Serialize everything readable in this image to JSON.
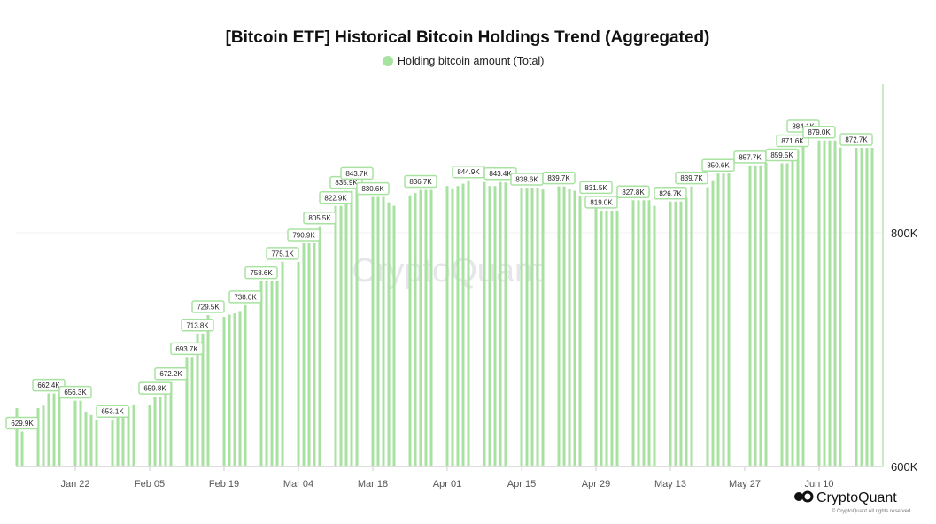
{
  "chart_data": {
    "type": "bar",
    "title": "[Bitcoin ETF] Historical Bitcoin Holdings Trend (Aggregated)",
    "legend": {
      "position": "top",
      "entries": [
        {
          "name": "Holding bitcoin amount (Total)",
          "color": "#a8e2a0"
        }
      ]
    },
    "series": [
      {
        "name": "Holding bitcoin amount (Total)",
        "color": "#a8e2a0",
        "weeks": [
          {
            "start": "2024-01-11",
            "values": [
              650,
              629.9
            ]
          },
          {
            "start": "2024-01-15",
            "values": [
              650,
              652,
              662.4,
              662.4,
              662.4
            ]
          },
          {
            "start": "2024-01-22",
            "values": [
              656.3,
              656.3,
              647,
              644,
              640
            ]
          },
          {
            "start": "2024-01-29",
            "values": [
              640,
              651,
              651,
              651,
              653.1
            ]
          },
          {
            "start": "2024-02-05",
            "values": [
              653,
              659.8,
              659.8,
              668,
              672.2
            ]
          },
          {
            "start": "2024-02-12",
            "values": [
              693.7,
              693.7,
              713.8,
              713.8,
              729.5
            ]
          },
          {
            "start": "2024-02-19",
            "values": [
              728,
              730,
              731,
              733,
              738.0
            ]
          },
          {
            "start": "2024-02-26",
            "values": [
              758.6,
              758.6,
              758.6,
              758.6,
              775.1
            ]
          },
          {
            "start": "2024-03-04",
            "values": [
              775,
              790.9,
              790.9,
              790.9,
              805.5
            ]
          },
          {
            "start": "2024-03-11",
            "values": [
              822.9,
              822.9,
              835.9,
              835.9,
              843.7
            ]
          },
          {
            "start": "2024-03-18",
            "values": [
              830.6,
              830.6,
              830.6,
              826,
              823
            ]
          },
          {
            "start": "2024-03-25",
            "values": [
              832,
              834,
              836.7,
              836.7,
              836.7
            ]
          },
          {
            "start": "2024-04-01",
            "values": [
              840,
              838,
              840,
              842,
              844.9
            ]
          },
          {
            "start": "2024-04-08",
            "values": [
              843.4,
              840,
              840,
              843.4,
              843
            ]
          },
          {
            "start": "2024-04-15",
            "values": [
              838.6,
              838.6,
              838.6,
              838.6,
              837
            ]
          },
          {
            "start": "2024-04-22",
            "values": [
              839.7,
              839.7,
              838,
              836,
              831
            ]
          },
          {
            "start": "2024-04-29",
            "values": [
              831.5,
              819.0,
              819.0,
              819.0,
              819.0
            ]
          },
          {
            "start": "2024-05-06",
            "values": [
              827.8,
              827.8,
              827.8,
              827.8,
              823
            ]
          },
          {
            "start": "2024-05-13",
            "values": [
              826.7,
              826.7,
              826.7,
              830,
              839.7
            ]
          },
          {
            "start": "2024-05-20",
            "values": [
              839,
              845,
              850.6,
              850.6,
              850.6
            ]
          },
          {
            "start": "2024-05-28",
            "values": [
              857.7,
              857.7,
              857.7,
              860
            ]
          },
          {
            "start": "2024-06-03",
            "values": [
              859.5,
              859.5,
              871.6,
              871.6,
              884.1
            ]
          },
          {
            "start": "2024-06-10",
            "values": [
              879.0,
              879.0,
              879.0,
              879.0,
              873
            ]
          },
          {
            "start": "2024-06-17",
            "values": [
              872.7,
              872.7,
              872.7,
              872.7
            ]
          }
        ]
      }
    ],
    "annotations": [
      {
        "date": "2024-01-12",
        "label": "629.9K"
      },
      {
        "date": "2024-01-17",
        "label": "662.4K"
      },
      {
        "date": "2024-01-22",
        "label": "656.3K"
      },
      {
        "date": "2024-01-29",
        "label": "653.1K"
      },
      {
        "date": "2024-02-06",
        "label": "659.8K"
      },
      {
        "date": "2024-02-09",
        "label": "672.2K"
      },
      {
        "date": "2024-02-12",
        "label": "693.7K"
      },
      {
        "date": "2024-02-14",
        "label": "713.8K"
      },
      {
        "date": "2024-02-16",
        "label": "729.5K"
      },
      {
        "date": "2024-02-23",
        "label": "738.0K"
      },
      {
        "date": "2024-02-26",
        "label": "758.6K"
      },
      {
        "date": "2024-03-01",
        "label": "775.1K"
      },
      {
        "date": "2024-03-05",
        "label": "790.9K"
      },
      {
        "date": "2024-03-08",
        "label": "805.5K"
      },
      {
        "date": "2024-03-11",
        "label": "822.9K"
      },
      {
        "date": "2024-03-13",
        "label": "835.9K"
      },
      {
        "date": "2024-03-15",
        "label": "843.7K"
      },
      {
        "date": "2024-03-18",
        "label": "830.6K"
      },
      {
        "date": "2024-03-27",
        "label": "836.7K"
      },
      {
        "date": "2024-04-05",
        "label": "844.9K"
      },
      {
        "date": "2024-04-11",
        "label": "843.4K"
      },
      {
        "date": "2024-04-16",
        "label": "838.6K"
      },
      {
        "date": "2024-04-22",
        "label": "839.7K"
      },
      {
        "date": "2024-04-29",
        "label": "831.5K"
      },
      {
        "date": "2024-04-30",
        "label": "819.0K"
      },
      {
        "date": "2024-05-06",
        "label": "827.8K"
      },
      {
        "date": "2024-05-13",
        "label": "826.7K"
      },
      {
        "date": "2024-05-17",
        "label": "839.7K"
      },
      {
        "date": "2024-05-22",
        "label": "850.6K"
      },
      {
        "date": "2024-05-28",
        "label": "857.7K"
      },
      {
        "date": "2024-06-03",
        "label": "859.5K"
      },
      {
        "date": "2024-06-05",
        "label": "871.6K"
      },
      {
        "date": "2024-06-07",
        "label": "884.1K"
      },
      {
        "date": "2024-06-10",
        "label": "879.0K"
      },
      {
        "date": "2024-06-17",
        "label": "872.7K"
      }
    ],
    "x_ticks": [
      {
        "date": "2024-01-22",
        "label": "Jan 22"
      },
      {
        "date": "2024-02-05",
        "label": "Feb 05"
      },
      {
        "date": "2024-02-19",
        "label": "Feb 19"
      },
      {
        "date": "2024-03-04",
        "label": "Mar 04"
      },
      {
        "date": "2024-03-18",
        "label": "Mar 18"
      },
      {
        "date": "2024-04-01",
        "label": "Apr 01"
      },
      {
        "date": "2024-04-15",
        "label": "Apr 15"
      },
      {
        "date": "2024-04-29",
        "label": "Apr 29"
      },
      {
        "date": "2024-05-13",
        "label": "May 13"
      },
      {
        "date": "2024-05-27",
        "label": "May 27"
      },
      {
        "date": "2024-06-10",
        "label": "Jun 10"
      }
    ],
    "y_ticks": [
      {
        "value": 600,
        "label": "600K"
      },
      {
        "value": 800,
        "label": "800K"
      }
    ],
    "ylim": [
      600,
      930
    ],
    "y_axis_position": "right",
    "grid": true,
    "xlabel": "",
    "ylabel": ""
  },
  "branding": {
    "watermark": "CryptoQuant",
    "logo": "CryptoQuant",
    "copyright": "© CryptoQuant All rights reserved."
  }
}
